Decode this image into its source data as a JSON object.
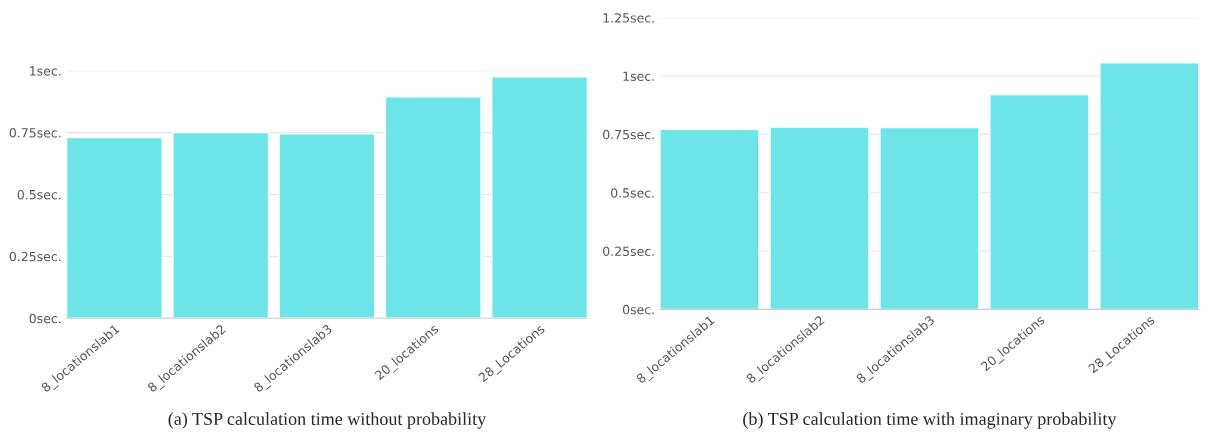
{
  "chart_data": [
    {
      "type": "bar",
      "categories": [
        "8_locationslab1",
        "8_locationslab2",
        "8_locationslab3",
        "20_locations",
        "28_Locations"
      ],
      "values": [
        0.73,
        0.75,
        0.745,
        0.895,
        0.975
      ],
      "color": "#6ce4e8",
      "ylim": [
        0,
        1
      ],
      "yticks": [
        {
          "value": 0,
          "label": "0sec."
        },
        {
          "value": 0.25,
          "label": "0.25sec."
        },
        {
          "value": 0.5,
          "label": "0.5sec."
        },
        {
          "value": 0.75,
          "label": "0.75sec."
        },
        {
          "value": 1,
          "label": "1sec."
        }
      ],
      "grid": "y",
      "annotations": [
        "(a) TSP calculation time without probability"
      ]
    },
    {
      "type": "bar",
      "categories": [
        "8_locationslab1",
        "8_locationslab2",
        "8_locationslab3",
        "20_locations",
        "28_Locations"
      ],
      "values": [
        0.772,
        0.781,
        0.779,
        0.921,
        1.057
      ],
      "color": "#6ce4e8",
      "ylim": [
        0,
        1.25
      ],
      "yticks": [
        {
          "value": 0,
          "label": "0sec."
        },
        {
          "value": 0.25,
          "label": "0.25sec."
        },
        {
          "value": 0.5,
          "label": "0.5sec."
        },
        {
          "value": 0.75,
          "label": "0.75sec."
        },
        {
          "value": 1,
          "label": "1sec."
        },
        {
          "value": 1.25,
          "label": "1.25sec."
        }
      ],
      "grid": "y",
      "annotations": [
        "(b) TSP calculation time with imaginary probability"
      ]
    }
  ]
}
